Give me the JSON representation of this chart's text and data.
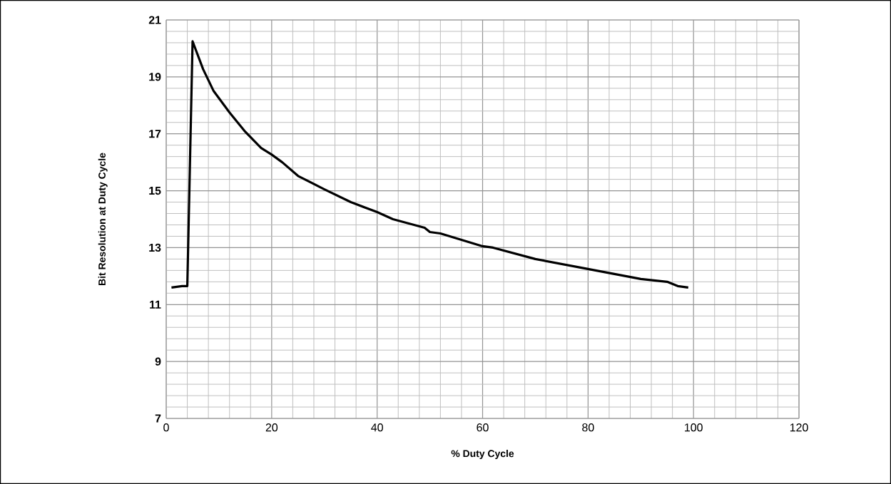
{
  "chart_data": {
    "type": "line",
    "xlabel": "% Duty Cycle",
    "ylabel": "Bit Resolution at Duty Cycle",
    "x": [
      1,
      3,
      4,
      5,
      7,
      9,
      11,
      12,
      15,
      18,
      20,
      22,
      25,
      30,
      35,
      40,
      43,
      45,
      49,
      50,
      52,
      60,
      62,
      70,
      80,
      90,
      95,
      97,
      99
    ],
    "series": [
      {
        "color": "#000000",
        "values": [
          11.6,
          11.65,
          11.65,
          20.25,
          19.27,
          18.5,
          18.0,
          17.75,
          17.07,
          16.5,
          16.27,
          16.0,
          15.52,
          15.05,
          14.6,
          14.25,
          14.0,
          13.9,
          13.7,
          13.55,
          13.5,
          13.05,
          13.0,
          12.6,
          12.25,
          11.9,
          11.8,
          11.65,
          11.6
        ]
      }
    ],
    "xlim": [
      0,
      120
    ],
    "ylim": [
      7,
      21
    ],
    "xticks": [
      0,
      20,
      40,
      60,
      80,
      100,
      120
    ],
    "yticks": [
      7,
      9,
      11,
      13,
      15,
      17,
      19,
      21
    ],
    "grid": true,
    "marker": "none",
    "line_style": "solid"
  }
}
